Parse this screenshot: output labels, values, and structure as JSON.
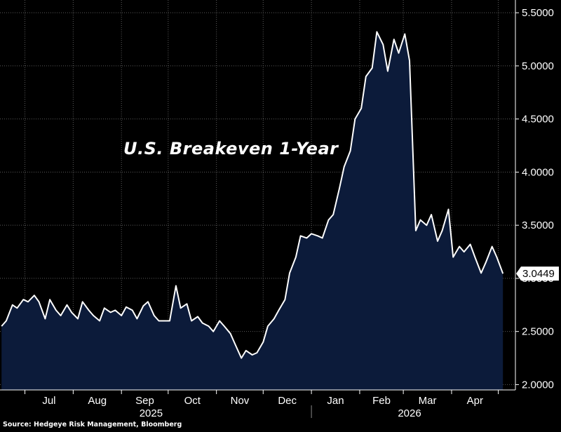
{
  "chart_data": {
    "type": "area",
    "title": "U.S. Breakeven 1-Year",
    "source": "Source: Hedgeye Risk Management, Bloomberg",
    "last_value_label": "3.0449",
    "ylim": [
      1.95,
      5.62
    ],
    "y_ticks": [
      "2.0000",
      "2.5000",
      "3.0000",
      "3.5000",
      "4.0000",
      "4.5000",
      "5.0000",
      "5.5000"
    ],
    "y_tick_values": [
      2.0,
      2.5,
      3.0,
      3.5,
      4.0,
      4.5,
      5.0,
      5.5
    ],
    "month_labels": [
      "Jul",
      "Aug",
      "Sep",
      "Oct",
      "Nov",
      "Dec",
      "Jan",
      "Feb",
      "Mar",
      "Apr"
    ],
    "year_labels": [
      "2025",
      "2026"
    ],
    "grid": true,
    "colors": {
      "line": "#ffffff",
      "fill": "#0c1b3a",
      "grid": "#5a5a5a",
      "axis": "#ffffff"
    },
    "x": [
      "2025-06-16",
      "2025-06-19",
      "2025-06-23",
      "2025-06-26",
      "2025-06-30",
      "2025-07-03",
      "2025-07-07",
      "2025-07-10",
      "2025-07-14",
      "2025-07-17",
      "2025-07-21",
      "2025-07-24",
      "2025-07-28",
      "2025-07-31",
      "2025-08-04",
      "2025-08-07",
      "2025-08-11",
      "2025-08-14",
      "2025-08-18",
      "2025-08-21",
      "2025-08-25",
      "2025-08-28",
      "2025-09-01",
      "2025-09-04",
      "2025-09-08",
      "2025-09-11",
      "2025-09-15",
      "2025-09-18",
      "2025-09-22",
      "2025-09-25",
      "2025-09-29",
      "2025-10-02",
      "2025-10-06",
      "2025-10-09",
      "2025-10-13",
      "2025-10-16",
      "2025-10-20",
      "2025-10-23",
      "2025-10-27",
      "2025-10-30",
      "2025-11-03",
      "2025-11-06",
      "2025-11-10",
      "2025-11-13",
      "2025-11-17",
      "2025-11-20",
      "2025-11-24",
      "2025-11-27",
      "2025-12-01",
      "2025-12-04",
      "2025-12-08",
      "2025-12-11",
      "2025-12-15",
      "2025-12-18",
      "2025-12-22",
      "2025-12-25",
      "2025-12-29",
      "2026-01-01",
      "2026-01-05",
      "2026-01-08",
      "2026-01-12",
      "2026-01-15",
      "2026-01-19",
      "2026-01-22",
      "2026-01-26",
      "2026-01-29",
      "2026-02-02",
      "2026-02-05",
      "2026-02-09",
      "2026-02-12",
      "2026-02-16",
      "2026-02-19",
      "2026-02-23",
      "2026-02-26",
      "2026-03-02",
      "2026-03-05",
      "2026-03-09",
      "2026-03-12",
      "2026-03-16",
      "2026-03-19",
      "2026-03-23",
      "2026-03-26",
      "2026-03-30",
      "2026-04-02",
      "2026-04-06",
      "2026-04-09",
      "2026-04-13",
      "2026-04-16",
      "2026-04-20",
      "2026-04-23",
      "2026-04-27",
      "2026-04-30",
      "2026-05-04"
    ],
    "values": [
      2.55,
      2.6,
      2.75,
      2.72,
      2.8,
      2.78,
      2.84,
      2.78,
      2.62,
      2.8,
      2.7,
      2.65,
      2.75,
      2.68,
      2.62,
      2.78,
      2.7,
      2.65,
      2.6,
      2.72,
      2.68,
      2.7,
      2.65,
      2.73,
      2.7,
      2.62,
      2.74,
      2.78,
      2.65,
      2.6,
      2.6,
      2.6,
      2.93,
      2.72,
      2.76,
      2.6,
      2.64,
      2.58,
      2.55,
      2.5,
      2.6,
      2.55,
      2.48,
      2.38,
      2.25,
      2.32,
      2.28,
      2.3,
      2.4,
      2.55,
      2.62,
      2.7,
      2.8,
      3.05,
      3.2,
      3.4,
      3.38,
      3.42,
      3.4,
      3.38,
      3.55,
      3.6,
      3.85,
      4.05,
      4.2,
      4.5,
      4.6,
      4.9,
      4.98,
      5.32,
      5.2,
      4.95,
      5.25,
      5.12,
      5.3,
      5.05,
      3.45,
      3.55,
      3.5,
      3.6,
      3.35,
      3.45,
      3.65,
      3.2,
      3.3,
      3.25,
      3.32,
      3.2,
      3.05,
      3.15,
      3.3,
      3.2,
      3.045
    ]
  }
}
